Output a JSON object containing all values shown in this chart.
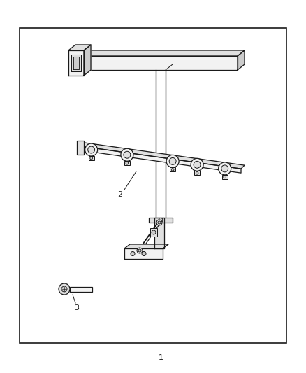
{
  "background_color": "#ffffff",
  "border_color": "#1a1a1a",
  "border_lw": 1.2,
  "fig_width": 4.38,
  "fig_height": 5.33,
  "dpi": 100,
  "label_1": "1",
  "label_2": "2",
  "label_3": "3",
  "lc": "#1a1a1a",
  "lw": 0.9,
  "face_light": "#f2f2f2",
  "face_mid": "#e0e0e0",
  "face_dark": "#cccccc"
}
